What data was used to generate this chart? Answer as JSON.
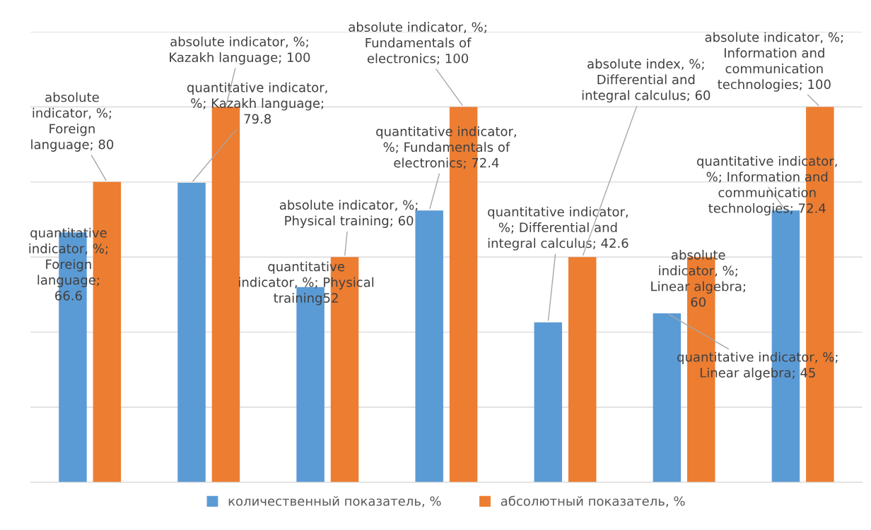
{
  "chart_data": {
    "type": "bar",
    "categories": [
      null,
      null,
      null,
      null,
      null,
      null,
      null
    ],
    "series": [
      {
        "name": "количественный показатель, %",
        "color": "#5b9bd5",
        "values": [
          66.6,
          79.8,
          52,
          72.4,
          42.6,
          45,
          72.4
        ],
        "value_labels": [
          "quantitative\nindicator, %;\nForeign\nlanguage;\n66.6",
          "quantitative indicator,\n%; Kazakh language;\n79.8",
          "quantitative\nindicator, %; Physical\ntraining52",
          "quantitative indicator,\n%; Fundamentals of\nelectronics; 72.4",
          "quantitative indicator,\n%; Differential and\nintegral calculus; 42.6",
          "quantitative indicator, %;\nLinear algebra; 45",
          "quantitative indicator,\n%; Information and\ncommunication\ntechnologies; 72.4"
        ]
      },
      {
        "name": "абсолютный показатель, %",
        "color": "#ed7d31",
        "values": [
          80,
          100,
          60,
          100,
          60,
          60,
          100
        ],
        "value_labels": [
          "absolute\nindicator, %;\nForeign\nlanguage; 80",
          "absolute indicator, %;\nKazakh language; 100",
          "absolute indicator, %;\nPhysical training; 60",
          "absolute indicator, %;\nFundamentals of\nelectronics; 100",
          "absolute index, %;\nDifferential and\nintegral calculus; 60",
          "absolute\nindicator, %;\nLinear algebra;\n60",
          "absolute indicator, %;\nInformation and\ncommunication\ntechnologies; 100"
        ]
      }
    ],
    "ylim": [
      0,
      120
    ],
    "yticks": [
      {
        "value": 0,
        "label": null
      },
      {
        "value": 20,
        "label": null
      },
      {
        "value": 40,
        "label": null
      },
      {
        "value": 60,
        "label": null
      },
      {
        "value": 80,
        "label": null
      },
      {
        "value": 100,
        "label": null
      },
      {
        "value": 120,
        "label": null
      }
    ],
    "grid": "y",
    "legend": "bottom"
  }
}
